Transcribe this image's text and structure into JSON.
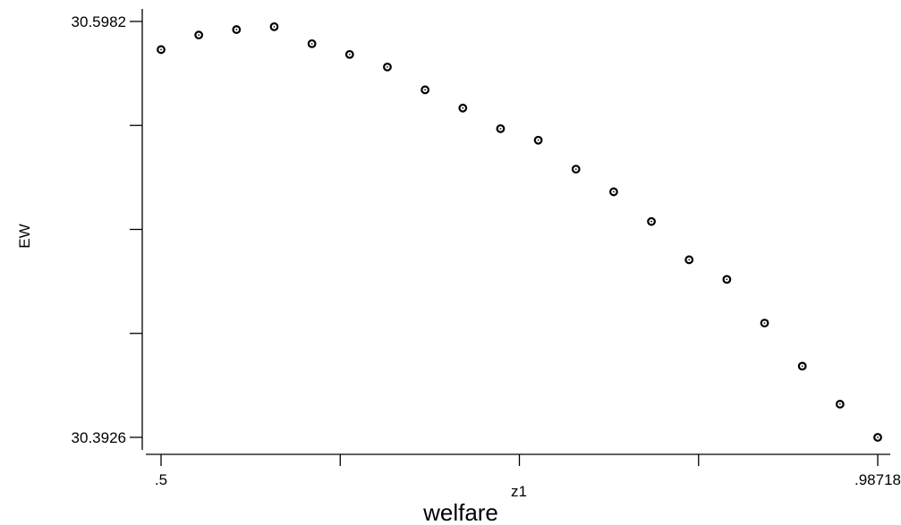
{
  "chart_data": {
    "type": "scatter",
    "title": "welfare",
    "xlabel": "z1",
    "ylabel": "EW",
    "x_tick_labels": [
      ".5",
      ".98718"
    ],
    "y_tick_labels": [
      "30.5982",
      "30.3926"
    ],
    "xlim": [
      0.5,
      0.98718
    ],
    "ylim": [
      30.3926,
      30.5982
    ],
    "x_minor_ticks": [
      0.6218,
      0.74359,
      0.86539
    ],
    "y_minor_ticks": [
      30.444,
      30.4954,
      30.5468
    ],
    "grid": false,
    "marker": "hollow-circle",
    "series": [
      {
        "x": [
          0.5,
          0.52564,
          0.55128,
          0.57692,
          0.60256,
          0.6282,
          0.65385,
          0.67949,
          0.70513,
          0.73077,
          0.75641,
          0.78205,
          0.80769,
          0.83333,
          0.85897,
          0.88461,
          0.91026,
          0.9359,
          0.96154,
          0.98718
        ],
        "y": [
          30.5843,
          30.5915,
          30.5942,
          30.5956,
          30.5872,
          30.5819,
          30.5757,
          30.5644,
          30.5554,
          30.5452,
          30.5395,
          30.5252,
          30.514,
          30.4993,
          30.4804,
          30.4707,
          30.4491,
          30.4278,
          30.409,
          30.3926
        ]
      }
    ]
  }
}
